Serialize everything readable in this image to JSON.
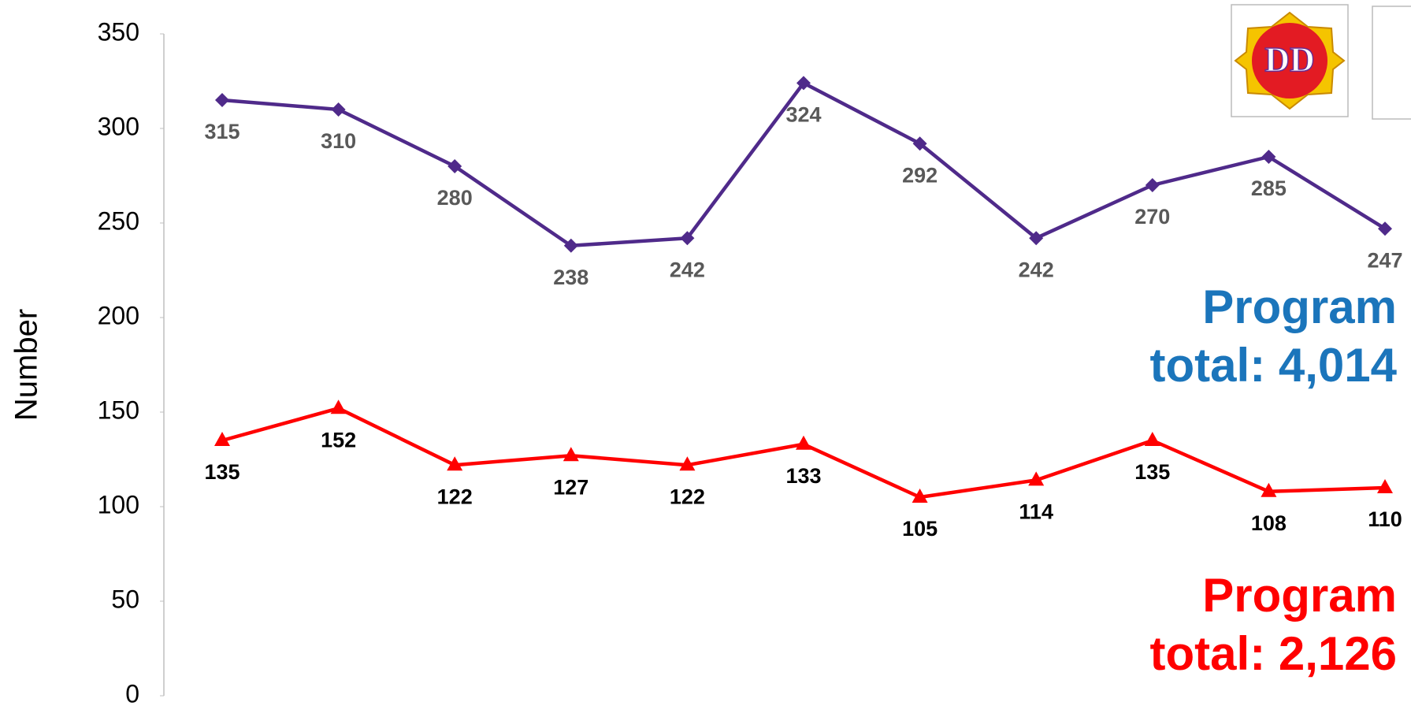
{
  "chart_data": {
    "type": "line",
    "y_label": "Number",
    "categories": [
      null,
      null,
      null,
      null,
      null,
      null,
      null,
      null,
      null,
      null,
      null
    ],
    "series": [
      {
        "color": "#4f2a8a",
        "label_color": "#595959",
        "marker": "diamond",
        "values": [
          315,
          310,
          280,
          238,
          242,
          324,
          292,
          242,
          270,
          285,
          247
        ]
      },
      {
        "color": "#ff0000",
        "label_color": "#000000",
        "marker": "triangle",
        "values": [
          135,
          152,
          122,
          127,
          122,
          133,
          105,
          114,
          135,
          108,
          110
        ]
      }
    ],
    "annotations": [
      {
        "lines": [
          "Program",
          "total: 4,014"
        ],
        "color": "#1b75bb"
      },
      {
        "lines": [
          "Program",
          "total: 2,126"
        ],
        "color": "#ff0000"
      }
    ],
    "ylim": [
      0,
      350
    ],
    "yticks": [
      0,
      50,
      100,
      150,
      200,
      250,
      300,
      350
    ],
    "grid": false
  }
}
